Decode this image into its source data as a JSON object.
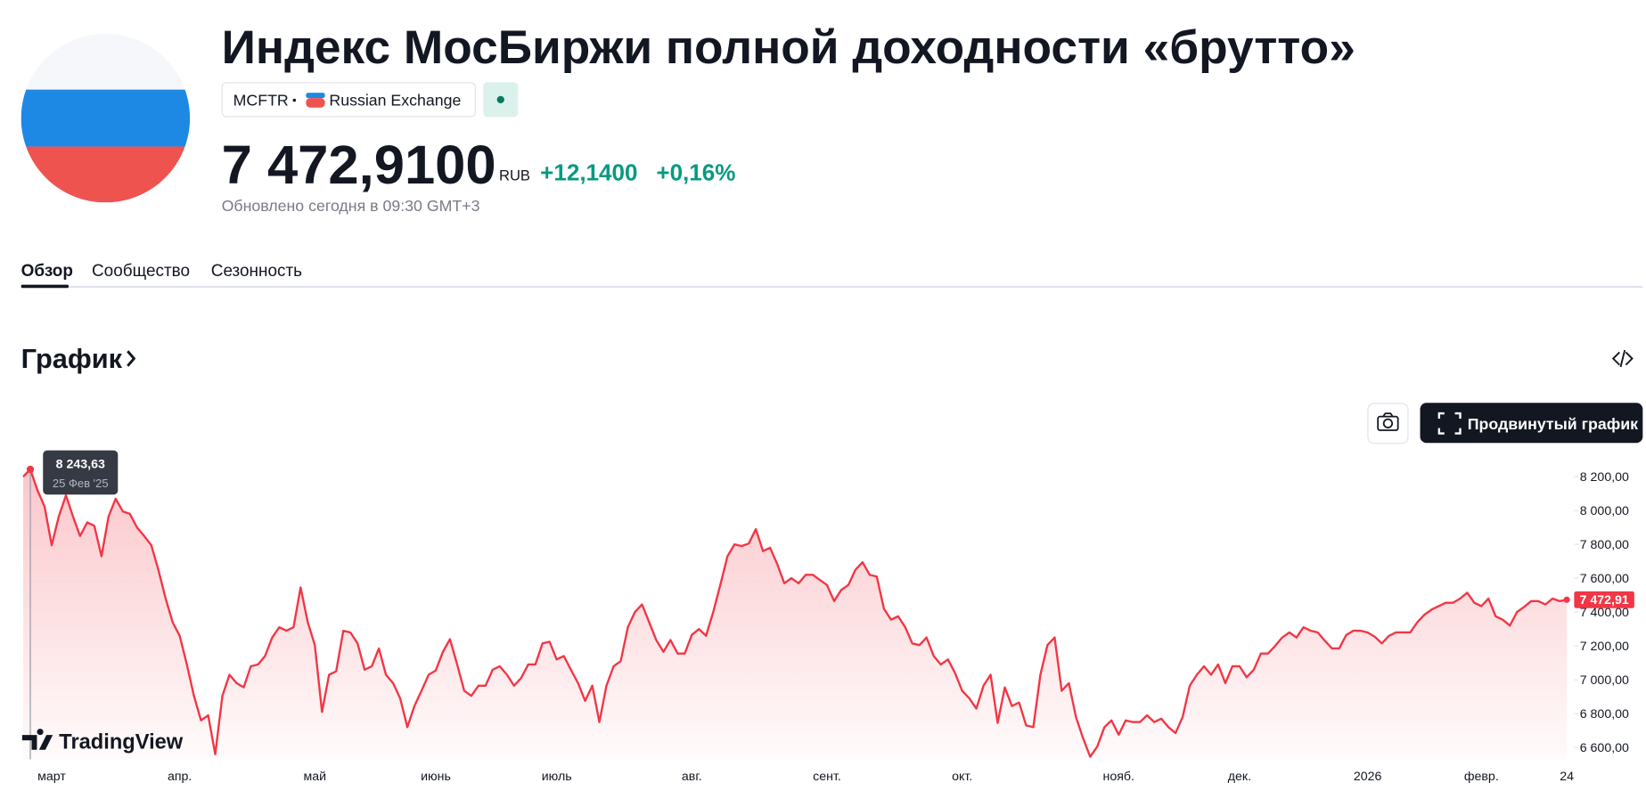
{
  "header": {
    "title": "Индекс МосБиржи полной доходности «брутто»",
    "ticker": "MCFTR",
    "exchange": "Russian Exchange",
    "price": "7 472,9100",
    "currency": "RUB",
    "change": "+12,1400",
    "change_percent": "+0,16%",
    "updated": "Обновлено сегодня в 09:30 GMT+3"
  },
  "tabs": [
    "Обзор",
    "Сообщество",
    "Сезонность"
  ],
  "section_title": "График",
  "toolbar": {
    "advanced_chart_button": "Продвинутый график"
  },
  "chart_data": {
    "type": "line",
    "color": "#f23645",
    "categories": [
      null,
      null,
      null,
      null,
      "март",
      null,
      null,
      null,
      null,
      null,
      null,
      null,
      null,
      null,
      null,
      null,
      null,
      null,
      null,
      null,
      null,
      null,
      "апр.",
      null,
      null,
      null,
      null,
      null,
      null,
      null,
      null,
      null,
      null,
      null,
      null,
      null,
      null,
      null,
      null,
      null,
      null,
      "май",
      null,
      null,
      null,
      null,
      null,
      null,
      null,
      null,
      null,
      null,
      null,
      null,
      null,
      null,
      null,
      null,
      "июнь",
      null,
      null,
      null,
      null,
      null,
      null,
      null,
      null,
      null,
      null,
      null,
      null,
      null,
      null,
      null,
      null,
      "июль",
      null,
      null,
      null,
      null,
      null,
      null,
      null,
      null,
      null,
      null,
      null,
      null,
      null,
      null,
      null,
      null,
      null,
      null,
      "авг.",
      null,
      null,
      null,
      null,
      null,
      null,
      null,
      null,
      null,
      null,
      null,
      null,
      null,
      null,
      null,
      null,
      null,
      null,
      "сент.",
      null,
      null,
      null,
      null,
      null,
      null,
      null,
      null,
      null,
      null,
      null,
      null,
      null,
      null,
      null,
      null,
      null,
      null,
      "окт.",
      null,
      null,
      null,
      null,
      null,
      null,
      null,
      null,
      null,
      null,
      null,
      null,
      null,
      null,
      null,
      null,
      null,
      null,
      null,
      null,
      null,
      "нояб.",
      null,
      null,
      null,
      null,
      null,
      null,
      null,
      null,
      null,
      null,
      null,
      null,
      null,
      null,
      null,
      null,
      "дек.",
      null,
      null,
      null,
      null,
      null,
      null,
      null,
      null,
      null,
      null,
      null,
      null,
      null,
      null,
      null,
      null,
      null,
      "2026",
      null,
      null,
      null,
      null,
      null,
      null,
      null,
      null,
      null,
      null,
      null,
      null,
      null,
      null,
      null,
      "февр.",
      null,
      null,
      null,
      null,
      null,
      null,
      null,
      null,
      null,
      null,
      null,
      "24"
    ],
    "values": [
      8200,
      8243.63,
      8120,
      8025,
      7795,
      7965,
      8090,
      7965,
      7850,
      7930,
      7910,
      7730,
      7965,
      8070,
      7995,
      7980,
      7900,
      7850,
      7795,
      7650,
      7485,
      7340,
      7260,
      7090,
      6905,
      6760,
      6790,
      6560,
      6905,
      7030,
      6980,
      6955,
      7080,
      7090,
      7140,
      7250,
      7310,
      7290,
      7310,
      7545,
      7340,
      7205,
      6810,
      7030,
      7050,
      7290,
      7280,
      7215,
      7060,
      7080,
      7185,
      7030,
      6980,
      6890,
      6720,
      6845,
      6935,
      7030,
      7055,
      7165,
      7240,
      7090,
      6935,
      6905,
      6965,
      6965,
      7060,
      7080,
      7030,
      6965,
      7010,
      7090,
      7090,
      7215,
      7225,
      7120,
      7140,
      7060,
      6980,
      6875,
      6965,
      6750,
      6965,
      7080,
      7110,
      7310,
      7400,
      7445,
      7340,
      7235,
      7165,
      7235,
      7155,
      7155,
      7265,
      7300,
      7260,
      7400,
      7560,
      7730,
      7800,
      7790,
      7805,
      7890,
      7760,
      7780,
      7685,
      7570,
      7600,
      7570,
      7620,
      7620,
      7590,
      7560,
      7465,
      7530,
      7560,
      7650,
      7695,
      7620,
      7610,
      7420,
      7355,
      7375,
      7310,
      7215,
      7205,
      7250,
      7140,
      7090,
      7120,
      7040,
      6935,
      6890,
      6830,
      6965,
      7030,
      6745,
      6955,
      6845,
      6865,
      6730,
      6720,
      7030,
      7205,
      7250,
      6935,
      6980,
      6780,
      6655,
      6545,
      6605,
      6720,
      6760,
      6675,
      6760,
      6750,
      6750,
      6790,
      6750,
      6770,
      6720,
      6685,
      6780,
      6965,
      7030,
      7080,
      7030,
      7090,
      6980,
      7080,
      7080,
      7015,
      7060,
      7155,
      7155,
      7200,
      7250,
      7280,
      7250,
      7310,
      7290,
      7280,
      7230,
      7185,
      7185,
      7265,
      7290,
      7290,
      7280,
      7255,
      7215,
      7260,
      7280,
      7280,
      7280,
      7340,
      7385,
      7415,
      7435,
      7455,
      7455,
      7480,
      7515,
      7455,
      7435,
      7480,
      7375,
      7355,
      7320,
      7400,
      7430,
      7465,
      7465,
      7445,
      7480,
      7465,
      7472.91
    ],
    "ylim": [
      6530,
      8300
    ],
    "yticks": [
      {
        "value": 6600,
        "label": "6 600,00"
      },
      {
        "value": 6800,
        "label": "6 800,00"
      },
      {
        "value": 7000,
        "label": "7 000,00"
      },
      {
        "value": 7200,
        "label": "7 200,00"
      },
      {
        "value": 7400,
        "label": "7 400,00"
      },
      {
        "value": 7600,
        "label": "7 600,00"
      },
      {
        "value": 7800,
        "label": "7 800,00"
      },
      {
        "value": 8000,
        "label": "8 000,00"
      },
      {
        "value": 8200,
        "label": "8 200,00"
      }
    ],
    "tooltip": {
      "value": 8243.63,
      "label": "8 243,63",
      "date": "25 Фев '25"
    },
    "last_price": {
      "value": 7472.91,
      "label": "7 472,91"
    },
    "watermark": "TradingView"
  }
}
